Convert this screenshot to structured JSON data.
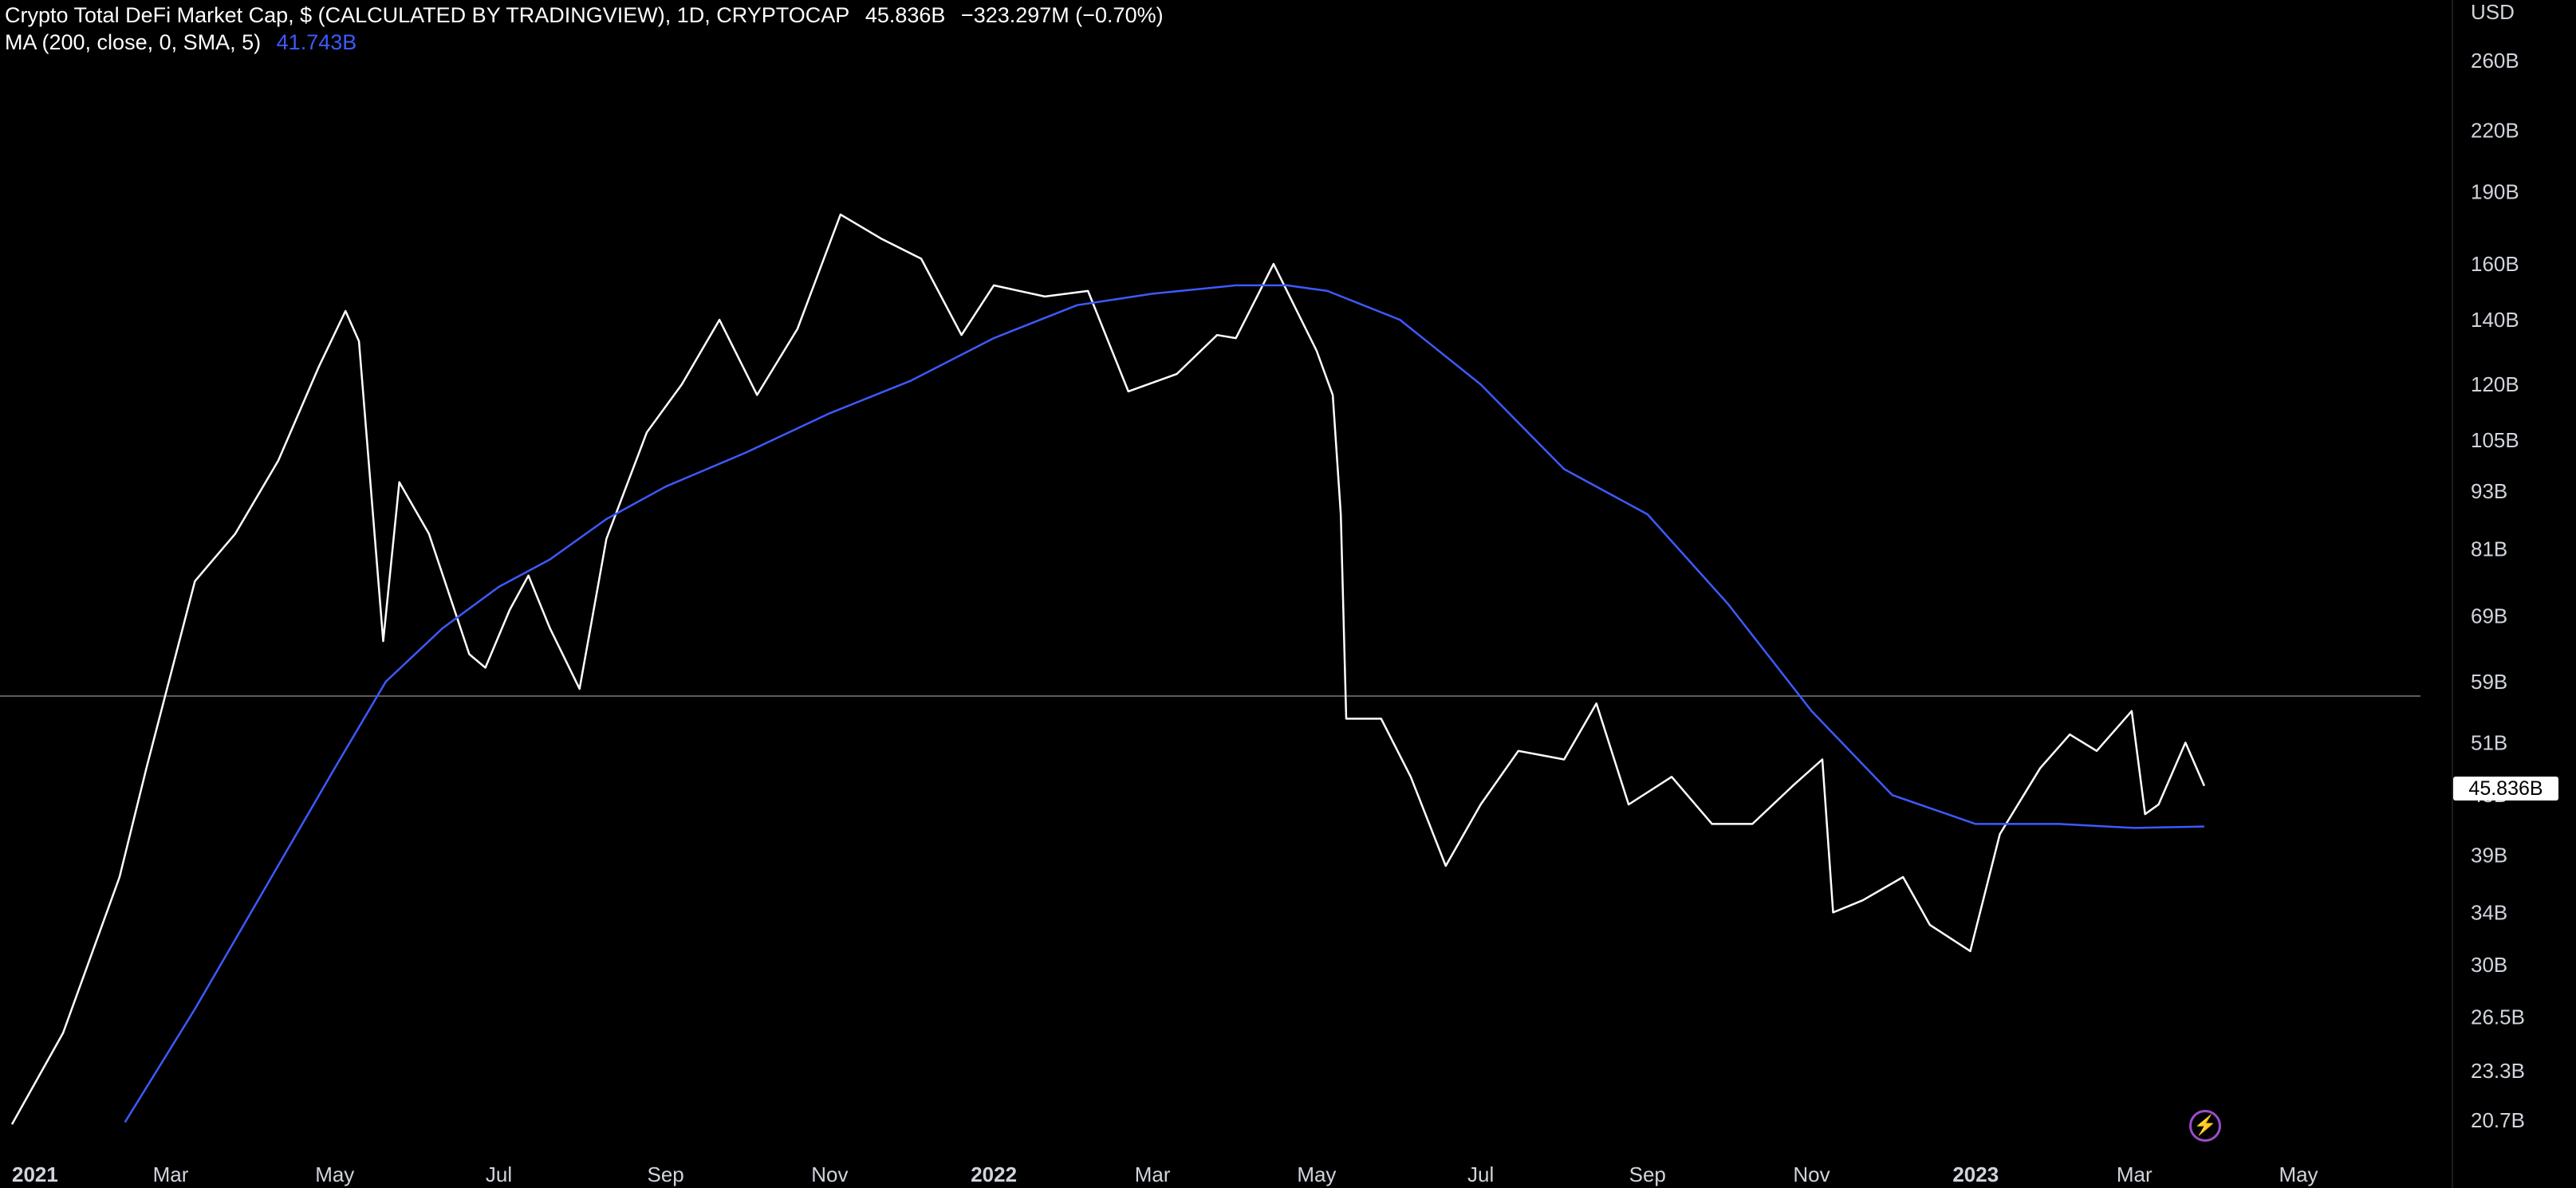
{
  "legend": {
    "title": "Crypto Total DeFi Market Cap, $ (CALCULATED BY TRADINGVIEW), 1D, CRYPTOCAP",
    "last": "45.836B",
    "change": "−323.297M (−0.70%)",
    "ma_label": "MA (200, close, 0, SMA, 5)",
    "ma_value": "41.743B"
  },
  "colors": {
    "background": "#000000",
    "price_line": "#ffffff",
    "ma_line": "#3d5afe",
    "axis_text": "#d1d4dc",
    "hline": "#787b86"
  },
  "icons": {
    "flash": "lightning-icon"
  },
  "price_badge": "45.836B",
  "chart_data": {
    "type": "line",
    "y_scale": "log",
    "y_unit": "USD",
    "y_ticks": [
      "260B",
      "220B",
      "190B",
      "160B",
      "140B",
      "120B",
      "105B",
      "93B",
      "81B",
      "69B",
      "59B",
      "51B",
      "45B",
      "39B",
      "34B",
      "30B",
      "26.5B",
      "23.3B",
      "20.7B"
    ],
    "x_ticks": [
      "2021",
      "Mar",
      "May",
      "Jul",
      "Sep",
      "Nov",
      "2022",
      "Mar",
      "May",
      "Jul",
      "Sep",
      "Nov",
      "2023",
      "Mar",
      "May"
    ],
    "horizontal_line": 57,
    "series": [
      {
        "name": "Crypto Total DeFi Market Cap",
        "x": [
          "2021-01-01",
          "2021-01-20",
          "2021-02-10",
          "2021-02-20",
          "2021-03-10",
          "2021-03-25",
          "2021-04-10",
          "2021-04-25",
          "2021-05-05",
          "2021-05-10",
          "2021-05-19",
          "2021-05-25",
          "2021-06-05",
          "2021-06-20",
          "2021-06-26",
          "2021-07-05",
          "2021-07-12",
          "2021-07-20",
          "2021-07-31",
          "2021-08-10",
          "2021-08-25",
          "2021-09-07",
          "2021-09-21",
          "2021-10-05",
          "2021-10-20",
          "2021-11-05",
          "2021-11-20",
          "2021-12-05",
          "2021-12-20",
          "2022-01-01",
          "2022-01-20",
          "2022-02-05",
          "2022-02-20",
          "2022-03-10",
          "2022-03-25",
          "2022-04-01",
          "2022-04-15",
          "2022-05-01",
          "2022-05-07",
          "2022-05-10",
          "2022-05-12",
          "2022-05-25",
          "2022-06-05",
          "2022-06-18",
          "2022-07-01",
          "2022-07-15",
          "2022-08-01",
          "2022-08-13",
          "2022-08-25",
          "2022-09-10",
          "2022-09-25",
          "2022-10-10",
          "2022-10-25",
          "2022-11-05",
          "2022-11-09",
          "2022-11-20",
          "2022-12-05",
          "2022-12-15",
          "2022-12-30",
          "2023-01-10",
          "2023-01-25",
          "2023-02-05",
          "2023-02-15",
          "2023-02-28",
          "2023-03-05",
          "2023-03-10",
          "2023-03-20",
          "2023-03-27"
        ],
        "y": [
          20.5,
          25.5,
          37,
          48,
          75,
          84,
          100,
          125,
          143,
          133,
          65,
          95,
          84,
          63,
          61,
          70,
          76,
          67,
          58,
          83,
          107,
          120,
          140,
          117,
          137,
          180,
          170,
          162,
          135,
          152,
          148,
          150,
          118,
          123,
          135,
          134,
          160,
          130,
          117,
          88,
          54,
          54,
          47,
          38,
          44,
          50,
          49,
          56,
          44,
          47,
          42,
          42,
          46,
          49,
          34,
          35,
          37,
          33,
          31,
          41,
          48,
          52,
          50,
          55,
          43,
          44,
          51,
          46
        ]
      },
      {
        "name": "MA (200, close, 0, SMA, 5)",
        "x": [
          "2021-02-12",
          "2021-03-10",
          "2021-04-05",
          "2021-05-01",
          "2021-05-20",
          "2021-06-10",
          "2021-07-01",
          "2021-07-20",
          "2021-08-10",
          "2021-09-01",
          "2021-10-01",
          "2021-11-01",
          "2021-12-01",
          "2022-01-01",
          "2022-02-01",
          "2022-03-01",
          "2022-04-01",
          "2022-04-20",
          "2022-05-05",
          "2022-06-01",
          "2022-07-01",
          "2022-08-01",
          "2022-09-01",
          "2022-10-01",
          "2022-11-01",
          "2022-12-01",
          "2023-01-01",
          "2023-02-01",
          "2023-03-01",
          "2023-03-27"
        ],
        "y": [
          20.6,
          27,
          36,
          48,
          59,
          67,
          74,
          79,
          87,
          94,
          102,
          112,
          121,
          134,
          145,
          149,
          152,
          152,
          150,
          140,
          120,
          98,
          88,
          71,
          55,
          45,
          42,
          42,
          41.6,
          41.743
        ]
      }
    ]
  }
}
